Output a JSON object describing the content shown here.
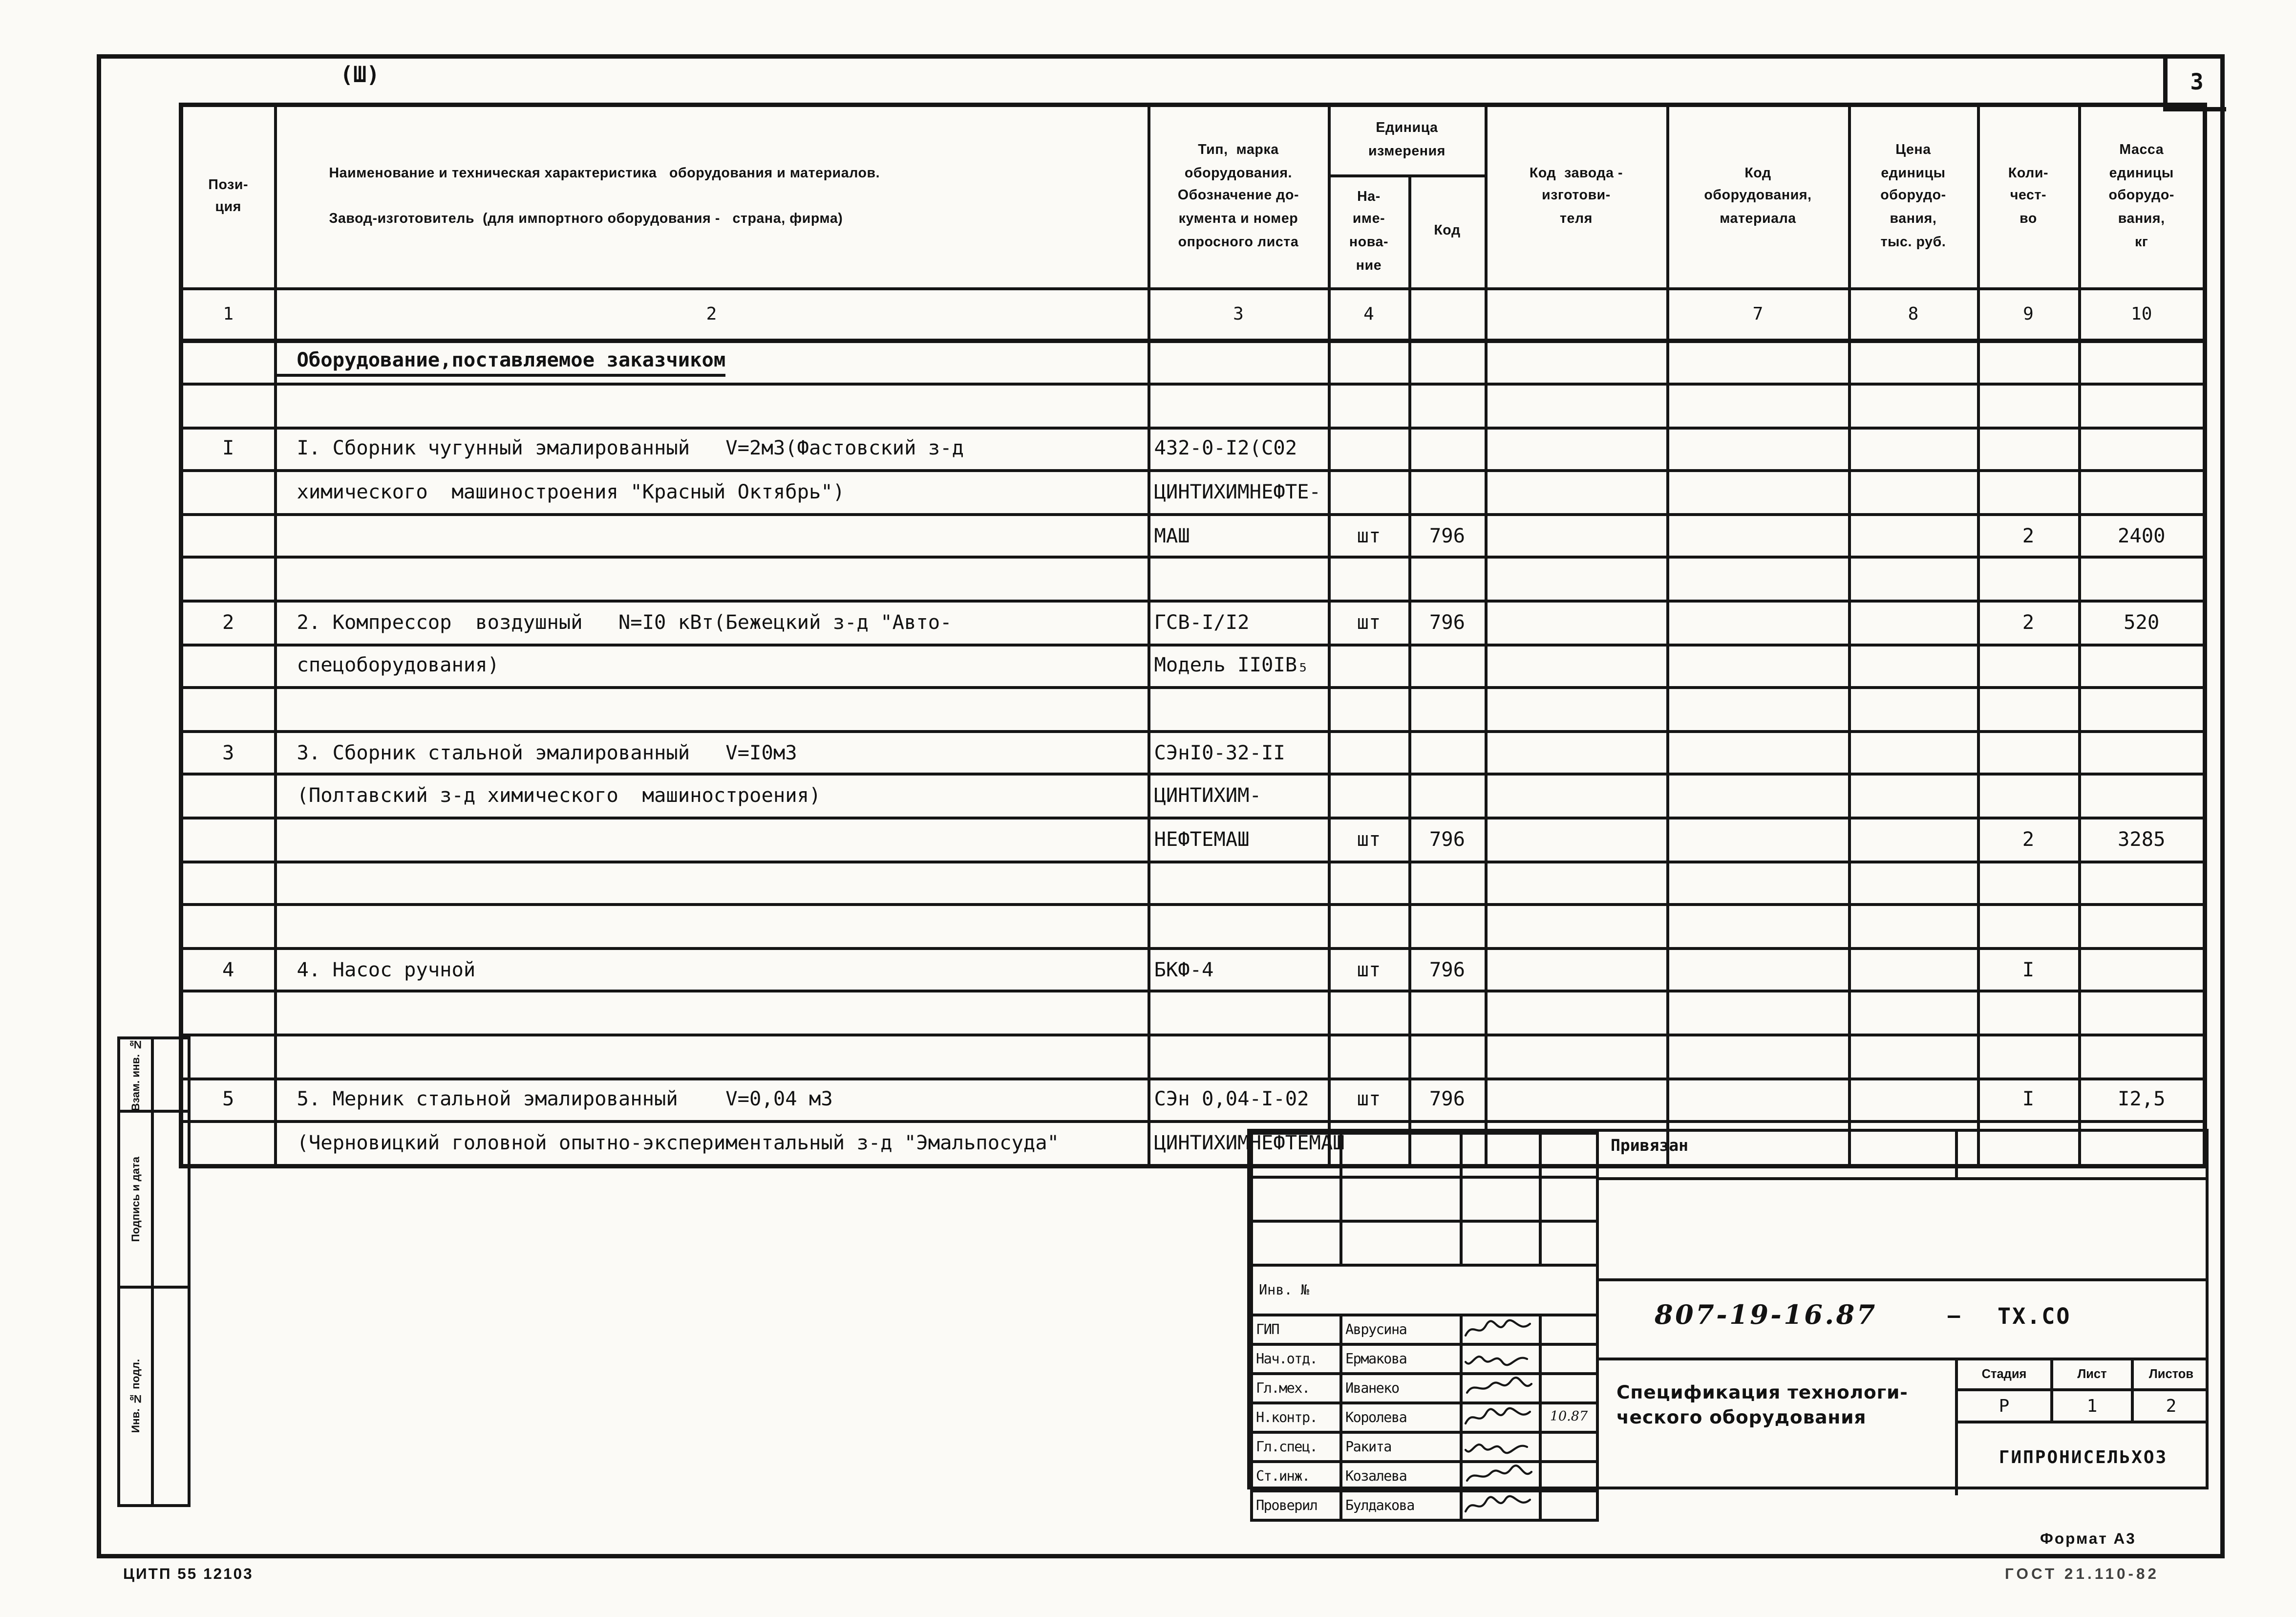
{
  "page": {
    "top_left_mark": "(Ш)",
    "sheet_number": "3",
    "bottom_left_code": "ЦИТП   55 12103",
    "format_note": "Формат А3",
    "gost_note": "ГОСТ 21.110-82"
  },
  "sidebar": {
    "items": [
      {
        "label": "Взам. инв. №"
      },
      {
        "label": "Подпись и дата"
      },
      {
        "label": "Инв. № подл."
      }
    ]
  },
  "table": {
    "headers": {
      "pos": "Пози-\nция",
      "name": "Наименование и техническая характеристика   оборудования и материалов.\n\nЗавод-изготовитель  (для импортного оборудования -   страна, фирма)",
      "type": "Тип,  марка\nоборудования.\nОбозначение до-\nкумента и номер\nопросного листа",
      "unit_group": "Единица\nизмерения",
      "unit_name": "На-\nиме-\nнова-\nние",
      "unit_code": "Код",
      "factory_code": "Код  завода -\nизготови-\nтеля",
      "equip_code": "Код\nоборудования,\nматериала",
      "price": "Цена\nединицы\nоборудо-\nвания,\nтыс. руб.",
      "qty": "Коли-\nчест-\nво",
      "mass": "Масса\nединицы\nоборудо-\nвания,\nкг"
    },
    "col_numbers": [
      "1",
      "2",
      "3",
      "4",
      "",
      "",
      "7",
      "8",
      "9",
      "10"
    ],
    "rows": [
      {
        "cells": [
          "",
          "Оборудование,поставляемое заказчиком",
          "",
          "",
          "",
          "",
          "",
          "",
          "",
          ""
        ],
        "section": true
      },
      {
        "cells": [
          "",
          "",
          "",
          "",
          "",
          "",
          "",
          "",
          "",
          ""
        ]
      },
      {
        "cells": [
          "I",
          "I. Сборник чугунный эмалированный   V=2м3(Фастовский з-д",
          "432-0-I2(С02",
          "",
          "",
          "",
          "",
          "",
          "",
          ""
        ]
      },
      {
        "cells": [
          "",
          "химического  машиностроения \"Красный Октябрь\")",
          "ЦИНТИХИМНЕФТЕ-",
          "",
          "",
          "",
          "",
          "",
          "",
          ""
        ]
      },
      {
        "cells": [
          "",
          "",
          "МАШ",
          "шт",
          "796",
          "",
          "",
          "",
          "2",
          "2400"
        ]
      },
      {
        "cells": [
          "",
          "",
          "",
          "",
          "",
          "",
          "",
          "",
          "",
          ""
        ]
      },
      {
        "cells": [
          "2",
          "2. Компрессор  воздушный   N=I0 кВт(Бежецкий з-д \"Авто-",
          "ГСВ-I/I2",
          "шт",
          "796",
          "",
          "",
          "",
          "2",
          "520"
        ]
      },
      {
        "cells": [
          "",
          "спецоборудования)",
          "Модель II0IВ₅",
          "",
          "",
          "",
          "",
          "",
          "",
          ""
        ]
      },
      {
        "cells": [
          "",
          "",
          "",
          "",
          "",
          "",
          "",
          "",
          "",
          ""
        ]
      },
      {
        "cells": [
          "3",
          "3. Сборник стальной эмалированный   V=I0м3",
          "СЭнI0-32-II",
          "",
          "",
          "",
          "",
          "",
          "",
          ""
        ]
      },
      {
        "cells": [
          "",
          "(Полтавский з-д химического  машиностроения)",
          "ЦИНТИХИМ-",
          "",
          "",
          "",
          "",
          "",
          "",
          ""
        ]
      },
      {
        "cells": [
          "",
          "",
          "НЕФТЕМАШ",
          "шт",
          "796",
          "",
          "",
          "",
          "2",
          "3285"
        ]
      },
      {
        "cells": [
          "",
          "",
          "",
          "",
          "",
          "",
          "",
          "",
          "",
          ""
        ]
      },
      {
        "cells": [
          "",
          "",
          "",
          "",
          "",
          "",
          "",
          "",
          "",
          ""
        ]
      },
      {
        "cells": [
          "4",
          "4. Насос ручной",
          "БКФ-4",
          "шт",
          "796",
          "",
          "",
          "",
          "I",
          ""
        ]
      },
      {
        "cells": [
          "",
          "",
          "",
          "",
          "",
          "",
          "",
          "",
          "",
          ""
        ]
      },
      {
        "cells": [
          "",
          "",
          "",
          "",
          "",
          "",
          "",
          "",
          "",
          ""
        ]
      },
      {
        "cells": [
          "5",
          "5. Мерник стальной эмалированный    V=0,04 м3",
          "СЭн 0,04-I-02",
          "шт",
          "796",
          "",
          "",
          "",
          "I",
          "I2,5"
        ]
      },
      {
        "cells": [
          "",
          "(Черновицкий головной опытно-экспериментальный з-д \"Эмальпосуда\"",
          "ЦИНТИХИМНЕФТЕМАШ",
          "",
          "",
          "",
          "",
          "",
          "",
          ""
        ]
      }
    ]
  },
  "titleblock": {
    "attached_note": "Привязан",
    "inv_label": "Инв. №",
    "doc_number": "807-19-16.87",
    "separator": "—",
    "doc_code": "ТХ.СО",
    "doc_title": "Спецификация технологи-\nческого оборудования",
    "stage_label": "Стадия",
    "sheet_label": "Лист",
    "sheets_label": "Листов",
    "stage": "Р",
    "sheet": "1",
    "sheets": "2",
    "organization": "ГИПРОНИСЕЛЬХОЗ",
    "signatures": [
      {
        "role": "ГИП",
        "name": "Аврусина",
        "date": ""
      },
      {
        "role": "Нач.отд.",
        "name": "Ермакова",
        "date": ""
      },
      {
        "role": "Гл.мех.",
        "name": "Иванеко",
        "date": ""
      },
      {
        "role": "Н.контр.",
        "name": "Королева",
        "date": "10.87"
      },
      {
        "role": "Гл.спец.",
        "name": "Ракита",
        "date": ""
      },
      {
        "role": "Ст.инж.",
        "name": "Козалева",
        "date": ""
      },
      {
        "role": "Проверил",
        "name": "Булдакова",
        "date": ""
      }
    ]
  }
}
